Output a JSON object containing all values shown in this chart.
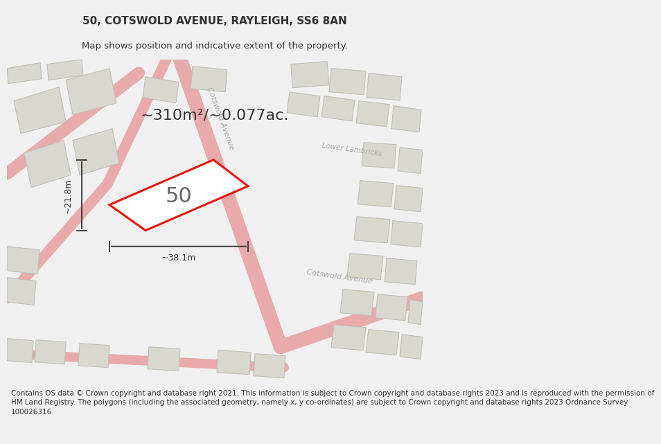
{
  "title_line1": "50, COTSWOLD AVENUE, RAYLEIGH, SS6 8AN",
  "title_line2": "Map shows position and indicative extent of the property.",
  "area_text": "~310m²/~0.077ac.",
  "width_label": "~38.1m",
  "height_label": "~21.8m",
  "property_number": "50",
  "footer_text": "Contains OS data © Crown copyright and database right 2021. This information is subject to Crown copyright and database rights 2023 and is reproduced with the permission of\nHM Land Registry. The polygons (including the associated geometry, namely x, y co-ordinates) are subject to Crown copyright and database rights 2023 Ordnance Survey\n100026316.",
  "bg_color": "#f0f0f0",
  "map_bg": "#f0f0ec",
  "property_fill": "#ffffff",
  "property_edge": "#e8150a",
  "road_color": "#e8aaaa",
  "building_fill": "#d8d8d0",
  "building_edge": "#c0c0b8",
  "text_color": "#333333",
  "road_label_color": "#aaaaaa",
  "title_fontsize": 11,
  "subtitle_fontsize": 9.5,
  "area_fontsize": 16,
  "label_fontsize": 9,
  "number_fontsize": 22,
  "footer_fontsize": 7.5
}
